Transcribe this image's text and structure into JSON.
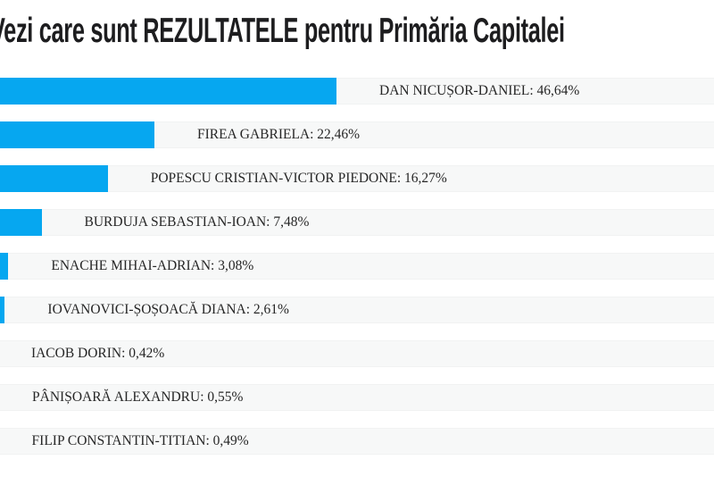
{
  "page": {
    "title": "Vezi care sunt REZULTATELE pentru Primăria Capitalei"
  },
  "chart_data": {
    "type": "bar",
    "orientation": "horizontal",
    "title": "Vezi care sunt REZULTATELE pentru Primăria Capitalei",
    "categories": [
      "DAN NICUȘOR-DANIEL",
      "FIREA GABRIELA",
      "POPESCU CRISTIAN-VICTOR PIEDONE",
      "BURDUJA SEBASTIAN-IOAN",
      "ENACHE MIHAI-ADRIAN",
      "IOVANOVICI-ȘOȘOACĂ DIANA",
      "IACOB DORIN",
      "PÂNIȘOARĂ ALEXANDRU",
      "FILIP CONSTANTIN-TITIAN"
    ],
    "values": [
      46.64,
      22.46,
      16.27,
      7.48,
      3.08,
      2.61,
      0.42,
      0.55,
      0.49
    ],
    "value_labels": [
      "46,64%",
      "22,46%",
      "16,27%",
      "7,48%",
      "3,08%",
      "2,61%",
      "0,42%",
      "0,55%",
      "0,49%"
    ],
    "display_labels": [
      "DAN NICUȘOR-DANIEL: 46,64%",
      "FIREA GABRIELA: 22,46%",
      "POPESCU CRISTIAN-VICTOR PIEDONE: 16,27%",
      "BURDUJA SEBASTIAN-IOAN: 7,48%",
      "ENACHE MIHAI-ADRIAN: 3,08%",
      "IOVANOVICI-ȘOȘOACĂ DIANA: 2,61%",
      "IACOB DORIN: 0,42%",
      "PÂNIȘOARĂ ALEXANDRU: 0,55%",
      "FILIP CONSTANTIN-TITIAN: 0,49%"
    ],
    "unit": "%",
    "decimal_separator": ",",
    "xlim": [
      0,
      100
    ],
    "grid": false,
    "legend": false,
    "colors": {
      "bar": "#06a7f0",
      "row_background": "#f7f8f8",
      "title_text": "#1d1d1f",
      "label_text": "#262626"
    }
  }
}
